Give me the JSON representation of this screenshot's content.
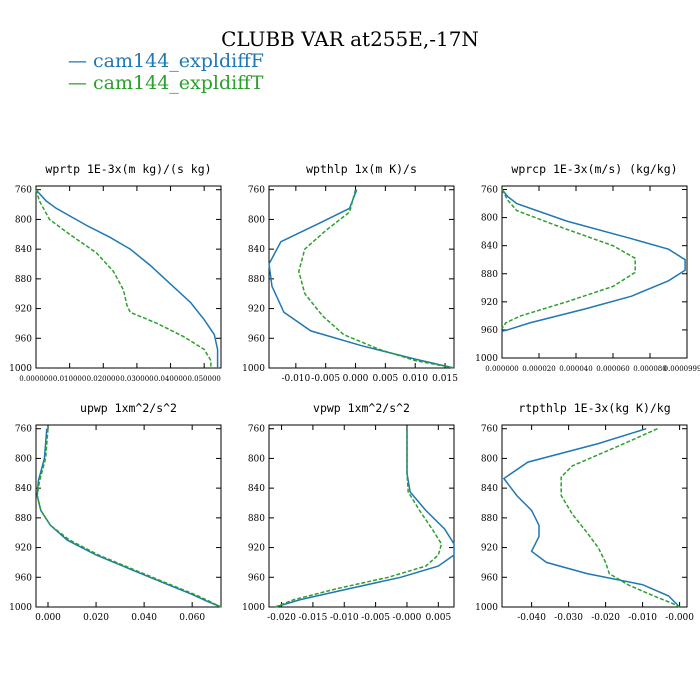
{
  "title": "CLUBB VAR at255E,-17N",
  "legend": [
    {
      "label": "— cam144_expldiffF",
      "color": "#1f77b4"
    },
    {
      "label": "— cam144_expldiffT",
      "color": "#2ca02c"
    }
  ],
  "chart_data": [
    {
      "type": "line",
      "title": "wprtp  1E-3x(m kg)/(s kg)",
      "ylim": [
        1000,
        755
      ],
      "yticks": [
        1000,
        960,
        920,
        880,
        840,
        800,
        760
      ],
      "ytick_labels": [
        "1000",
        "960",
        "920",
        "880",
        "840",
        "800",
        "760"
      ],
      "xlim": [
        0,
        0.055
      ],
      "xticks": [
        0,
        0.01,
        0.02,
        0.03,
        0.04,
        0.05
      ],
      "xtick_labels": [
        "0.000000",
        "0.010000",
        "0.020000",
        "0.030000",
        "0.040000",
        "0.050000"
      ],
      "series": [
        {
          "name": "cam144_expldiffF",
          "color": "#1f77b4",
          "dashed": false,
          "x": [
            0.0,
            0.003,
            0.006,
            0.015,
            0.022,
            0.028,
            0.034,
            0.04,
            0.046,
            0.05,
            0.053,
            0.054,
            0.054
          ],
          "y": [
            760,
            775,
            785,
            808,
            824,
            840,
            862,
            887,
            912,
            935,
            955,
            975,
            1000
          ]
        },
        {
          "name": "cam144_expldiffT",
          "color": "#2ca02c",
          "dashed": true,
          "x": [
            0.0,
            0.001,
            0.004,
            0.01,
            0.018,
            0.023,
            0.026,
            0.027,
            0.028,
            0.036,
            0.044,
            0.05,
            0.052,
            0.052
          ],
          "y": [
            760,
            775,
            800,
            820,
            845,
            870,
            895,
            915,
            925,
            940,
            958,
            975,
            990,
            1000
          ]
        }
      ]
    },
    {
      "type": "line",
      "title": "wpthlp  1x(m K)/s",
      "ylim": [
        1000,
        755
      ],
      "yticks": [
        1000,
        960,
        920,
        880,
        840,
        800,
        760
      ],
      "ytick_labels": [
        "1000",
        "960",
        "920",
        "880",
        "840",
        "800",
        "760"
      ],
      "xlim": [
        -0.0145,
        0.0165
      ],
      "xticks": [
        -0.01,
        -0.005,
        0.0,
        0.005,
        0.01,
        0.015
      ],
      "xtick_labels": [
        "-0.010",
        "-0.005",
        "0.000",
        "0.005",
        "0.010",
        "0.015"
      ],
      "series": [
        {
          "name": "cam144_expldiffF",
          "color": "#1f77b4",
          "dashed": false,
          "x": [
            0.0002,
            -0.001,
            -0.006,
            -0.0125,
            -0.0145,
            -0.014,
            -0.012,
            -0.0075,
            0.001,
            0.01,
            0.0165
          ],
          "y": [
            760,
            785,
            805,
            830,
            860,
            890,
            925,
            950,
            970,
            988,
            1000
          ]
        },
        {
          "name": "cam144_expldiffT",
          "color": "#2ca02c",
          "dashed": true,
          "x": [
            0.0,
            -0.001,
            -0.005,
            -0.0085,
            -0.0095,
            -0.0085,
            -0.0055,
            -0.002,
            0.004,
            0.01,
            0.0165
          ],
          "y": [
            760,
            790,
            815,
            840,
            870,
            900,
            930,
            955,
            975,
            990,
            1000
          ]
        }
      ]
    },
    {
      "type": "line",
      "title": "wprcp  1E-3x(m/s) (kg/kg)",
      "ylim": [
        1000,
        755
      ],
      "yticks": [
        1000,
        960,
        920,
        880,
        840,
        800,
        760
      ],
      "ytick_labels": [
        "1000",
        "960",
        "920",
        "880",
        "840",
        "800",
        "760"
      ],
      "xlim": [
        0,
        0.0001
      ],
      "xticks": [
        0,
        2e-05,
        4e-05,
        6e-05,
        8e-05,
        0.0001
      ],
      "xtick_labels": [
        "0.000000",
        "0.000020",
        "0.000040",
        "0.000060",
        "0.000080",
        "0.000099999"
      ],
      "series": [
        {
          "name": "cam144_expldiffF",
          "color": "#1f77b4",
          "dashed": false,
          "x": [
            0.0,
            3e-06,
            8e-06,
            3.5e-05,
            7e-05,
            9e-05,
            9.9e-05,
            9.9e-05,
            9e-05,
            7e-05,
            4.5e-05,
            1.5e-05,
            3e-06,
            0.0
          ],
          "y": [
            760,
            770,
            780,
            805,
            830,
            845,
            860,
            875,
            890,
            912,
            930,
            950,
            960,
            962
          ]
        },
        {
          "name": "cam144_expldiffT",
          "color": "#2ca02c",
          "dashed": true,
          "x": [
            0.0,
            3e-06,
            8e-06,
            3e-05,
            6e-05,
            7.2e-05,
            7.2e-05,
            6e-05,
            3.5e-05,
            1e-05,
            2e-06,
            0.0
          ],
          "y": [
            760,
            775,
            790,
            812,
            840,
            858,
            878,
            898,
            920,
            940,
            950,
            958
          ]
        }
      ]
    },
    {
      "type": "line",
      "title": "upwp  1xm^2/s^2",
      "ylim": [
        1000,
        755
      ],
      "yticks": [
        1000,
        960,
        920,
        880,
        840,
        800,
        760
      ],
      "ytick_labels": [
        "1000",
        "960",
        "920",
        "880",
        "840",
        "800",
        "760"
      ],
      "xlim": [
        -0.005,
        0.072
      ],
      "xticks": [
        0.0,
        0.02,
        0.04,
        0.06
      ],
      "xtick_labels": [
        "0.000",
        "0.020",
        "0.040",
        "0.060"
      ],
      "series": [
        {
          "name": "cam144_expldiffF",
          "color": "#1f77b4",
          "dashed": false,
          "x": [
            -0.0005,
            -0.0015,
            -0.004,
            -0.0045,
            -0.003,
            0.001,
            0.008,
            0.02,
            0.035,
            0.05,
            0.06,
            0.066,
            0.072
          ],
          "y": [
            760,
            800,
            830,
            850,
            870,
            890,
            910,
            930,
            950,
            970,
            983,
            992,
            1000
          ]
        },
        {
          "name": "cam144_expldiffT",
          "color": "#2ca02c",
          "dashed": true,
          "x": [
            0.0,
            -0.001,
            -0.0035,
            -0.0045,
            -0.003,
            0.001,
            0.009,
            0.021,
            0.036,
            0.051,
            0.061,
            0.067,
            0.072
          ],
          "y": [
            760,
            800,
            830,
            850,
            870,
            890,
            910,
            930,
            950,
            970,
            983,
            992,
            1000
          ]
        }
      ]
    },
    {
      "type": "line",
      "title": "vpwp  1xm^2/s^2",
      "ylim": [
        1000,
        755
      ],
      "yticks": [
        1000,
        960,
        920,
        880,
        840,
        800,
        760
      ],
      "ytick_labels": [
        "1000",
        "960",
        "920",
        "880",
        "840",
        "800",
        "760"
      ],
      "xlim": [
        -0.022,
        0.0075
      ],
      "xticks": [
        -0.02,
        -0.015,
        -0.01,
        -0.005,
        0.0,
        0.005
      ],
      "xtick_labels": [
        "-0.020",
        "-0.015",
        "-0.010",
        "-0.005",
        "-0.000",
        "0.005"
      ],
      "series": [
        {
          "name": "cam144_expldiffF",
          "color": "#1f77b4",
          "dashed": false,
          "x": [
            0.0,
            0.0,
            0.0005,
            0.003,
            0.006,
            0.0075,
            0.0075,
            0.005,
            -0.001,
            -0.009,
            -0.017,
            -0.021
          ],
          "y": [
            760,
            820,
            845,
            870,
            895,
            915,
            930,
            945,
            960,
            975,
            990,
            1000
          ]
        },
        {
          "name": "cam144_expldiffT",
          "color": "#2ca02c",
          "dashed": true,
          "x": [
            0.0,
            0.0,
            0.0002,
            0.002,
            0.004,
            0.0055,
            0.005,
            0.003,
            -0.003,
            -0.011,
            -0.018,
            -0.021
          ],
          "y": [
            760,
            820,
            845,
            870,
            895,
            915,
            930,
            945,
            960,
            975,
            990,
            1000
          ]
        }
      ]
    },
    {
      "type": "line",
      "title": "rtpthlp  1E-3x(kg K)/kg",
      "ylim": [
        1000,
        755
      ],
      "yticks": [
        1000,
        960,
        920,
        880,
        840,
        800,
        760
      ],
      "ytick_labels": [
        "1000",
        "960",
        "920",
        "880",
        "840",
        "800",
        "760"
      ],
      "xlim": [
        -0.048,
        0.002
      ],
      "xticks": [
        -0.04,
        -0.03,
        -0.02,
        -0.01,
        0.0
      ],
      "xtick_labels": [
        "-0.040",
        "-0.030",
        "-0.020",
        "-0.010",
        "-0.000"
      ],
      "series": [
        {
          "name": "cam144_expldiffF",
          "color": "#1f77b4",
          "dashed": false,
          "x": [
            -0.009,
            -0.022,
            -0.041,
            -0.0475,
            -0.044,
            -0.04,
            -0.038,
            -0.038,
            -0.04,
            -0.036,
            -0.025,
            -0.01,
            -0.003,
            0.0
          ],
          "y": [
            760,
            780,
            805,
            827,
            850,
            870,
            890,
            905,
            925,
            940,
            955,
            970,
            985,
            1000
          ]
        },
        {
          "name": "cam144_expldiffT",
          "color": "#2ca02c",
          "dashed": true,
          "x": [
            -0.006,
            -0.015,
            -0.029,
            -0.032,
            -0.032,
            -0.029,
            -0.025,
            -0.022,
            -0.02,
            -0.019,
            -0.014,
            -0.007,
            -0.002,
            0.0
          ],
          "y": [
            760,
            780,
            810,
            825,
            850,
            875,
            900,
            920,
            940,
            955,
            970,
            985,
            995,
            1000
          ]
        }
      ]
    }
  ]
}
